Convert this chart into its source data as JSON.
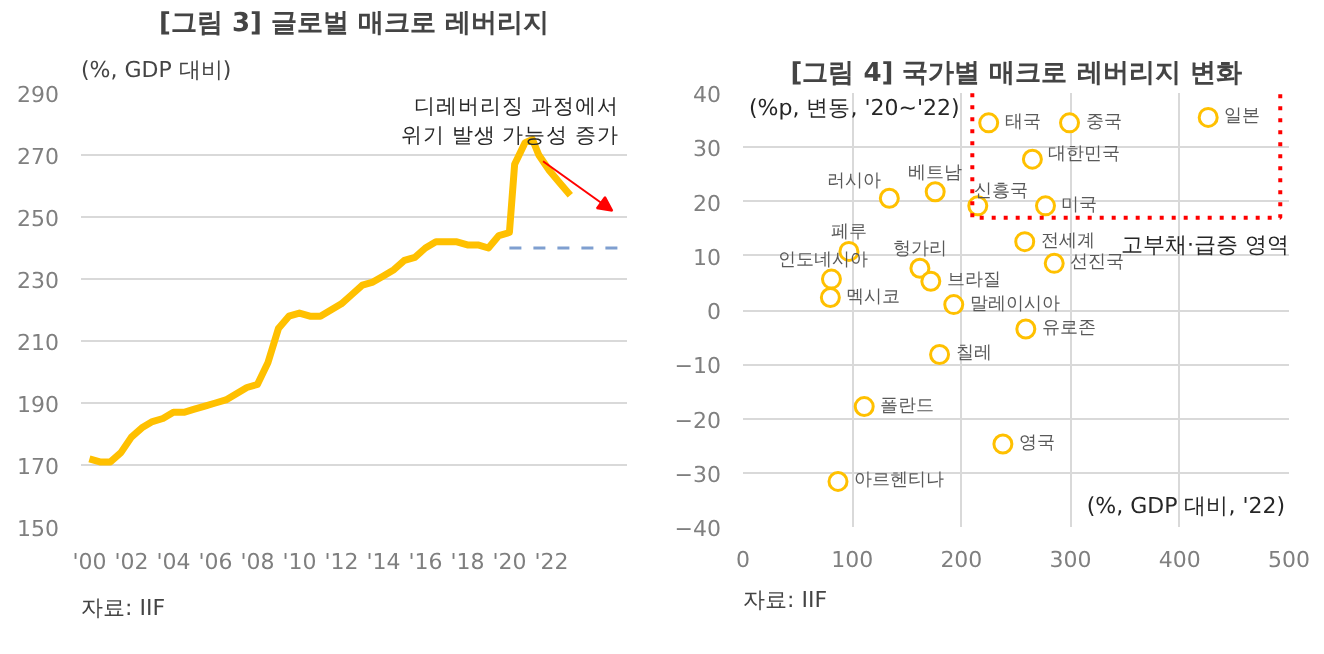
{
  "chart_data": [
    {
      "type": "line",
      "title": "[그림 3] 글로벌 매크로 레버리지",
      "ylabel": "(%, GDP 대비)",
      "annotations": [
        "디레버리징 과정에서\n위기 발생 가능성 증가",
        "자료: IIF"
      ],
      "x": [
        2000,
        2000.5,
        2001,
        2001.5,
        2002,
        2002.5,
        2003,
        2003.5,
        2004,
        2004.5,
        2005,
        2005.5,
        2006,
        2006.5,
        2007,
        2007.5,
        2008,
        2008.5,
        2009,
        2009.5,
        2010,
        2010.5,
        2011,
        2011.5,
        2012,
        2012.5,
        2013,
        2013.5,
        2014,
        2014.5,
        2015,
        2015.5,
        2016,
        2016.5,
        2017,
        2017.5,
        2018,
        2018.5,
        2019,
        2019.5,
        2020,
        2020.25,
        2020.75,
        2021.1,
        2021.4,
        2021.9,
        2022.4,
        2022.9
      ],
      "series": [
        {
          "color": "#ffc000",
          "line_style": "solid",
          "values": [
            172,
            171,
            171,
            174,
            179,
            182,
            184,
            185,
            187,
            187,
            188,
            189,
            190,
            191,
            193,
            195,
            196,
            203,
            214,
            218,
            219,
            218,
            218,
            220,
            222,
            225,
            228,
            229,
            231,
            233,
            236,
            237,
            240,
            242,
            242,
            242,
            241,
            241,
            240,
            244,
            245,
            267,
            274,
            275,
            270,
            265,
            261,
            257
          ]
        },
        {
          "type": "line",
          "x": [
            2020,
            2025.3
          ],
          "values": [
            240,
            240
          ],
          "color": "#7f9fd0",
          "line_style": "dashed"
        }
      ],
      "xlim": [
        1999.6,
        2025.6
      ],
      "xticks": [
        {
          "value": 2000,
          "label": "'00"
        },
        {
          "value": 2002,
          "label": "'02"
        },
        {
          "value": 2004,
          "label": "'04"
        },
        {
          "value": 2006,
          "label": "'06"
        },
        {
          "value": 2008,
          "label": "'08"
        },
        {
          "value": 2010,
          "label": "'10"
        },
        {
          "value": 2012,
          "label": "'12"
        },
        {
          "value": 2014,
          "label": "'14"
        },
        {
          "value": 2016,
          "label": "'16"
        },
        {
          "value": 2018,
          "label": "'18"
        },
        {
          "value": 2020,
          "label": "'20"
        },
        {
          "value": 2022,
          "label": "'22"
        }
      ],
      "ylim": [
        150,
        290
      ],
      "yticks": [
        150,
        170,
        190,
        210,
        230,
        250,
        270,
        290
      ],
      "grid": "y"
    },
    {
      "type": "scatter",
      "title": "[그림 4] 국가별 매크로 레버리지 변화",
      "ylabel": "(%p, 변동, '20~'22)",
      "xlabel": "(%, GDP 대비, '22)",
      "marker": "circle",
      "x": [
        225,
        299,
        426,
        265,
        215,
        277,
        134,
        176,
        97,
        258,
        162,
        285,
        81,
        80,
        172,
        193,
        259,
        180,
        111,
        238,
        87
      ],
      "series": [
        {
          "color": "#ffc000",
          "values": [
            34.5,
            34.5,
            35.5,
            27.8,
            19.2,
            19.2,
            20.6,
            21.8,
            10.8,
            12.6,
            7.7,
            8.6,
            5.7,
            2.3,
            5.3,
            1.0,
            -3.5,
            -8.2,
            -17.8,
            -24.7,
            -31.6
          ]
        }
      ],
      "annotations": [
        {
          "text": "태국",
          "x": 225,
          "y": 34.5
        },
        {
          "text": "중국",
          "x": 299,
          "y": 34.5
        },
        {
          "text": "일본",
          "x": 426,
          "y": 35.5
        },
        {
          "text": "대한민국",
          "x": 265,
          "y": 27.8
        },
        {
          "text": "신흥국",
          "x": 215,
          "y": 19.2
        },
        {
          "text": "미국",
          "x": 277,
          "y": 19.2
        },
        {
          "text": "러시아",
          "x": 134,
          "y": 20.6
        },
        {
          "text": "베트남",
          "x": 176,
          "y": 21.8
        },
        {
          "text": "페루",
          "x": 97,
          "y": 10.8
        },
        {
          "text": "전세계",
          "x": 258,
          "y": 12.6
        },
        {
          "text": "헝가리",
          "x": 162,
          "y": 7.7
        },
        {
          "text": "선진국",
          "x": 285,
          "y": 8.6
        },
        {
          "text": "인도네시아",
          "x": 81,
          "y": 5.7
        },
        {
          "text": "멕시코",
          "x": 80,
          "y": 2.3
        },
        {
          "text": "브라질",
          "x": 172,
          "y": 5.3
        },
        {
          "text": "말레이시아",
          "x": 193,
          "y": 1.0
        },
        {
          "text": "유로존",
          "x": 259,
          "y": -3.5
        },
        {
          "text": "칠레",
          "x": 180,
          "y": -8.2
        },
        {
          "text": "폴란드",
          "x": 111,
          "y": -17.8
        },
        {
          "text": "영국",
          "x": 238,
          "y": -24.7
        },
        {
          "text": "아르헨티나",
          "x": 87,
          "y": -31.6
        },
        "고부채·급증 영역",
        "자료: IIF"
      ],
      "xlim": [
        0,
        500
      ],
      "xticks": [
        0,
        100,
        200,
        300,
        400,
        500
      ],
      "ylim": [
        -40,
        40
      ],
      "yticks": [
        -40,
        -30,
        -20,
        -10,
        0,
        10,
        20,
        30,
        40
      ],
      "grid": true
    }
  ]
}
